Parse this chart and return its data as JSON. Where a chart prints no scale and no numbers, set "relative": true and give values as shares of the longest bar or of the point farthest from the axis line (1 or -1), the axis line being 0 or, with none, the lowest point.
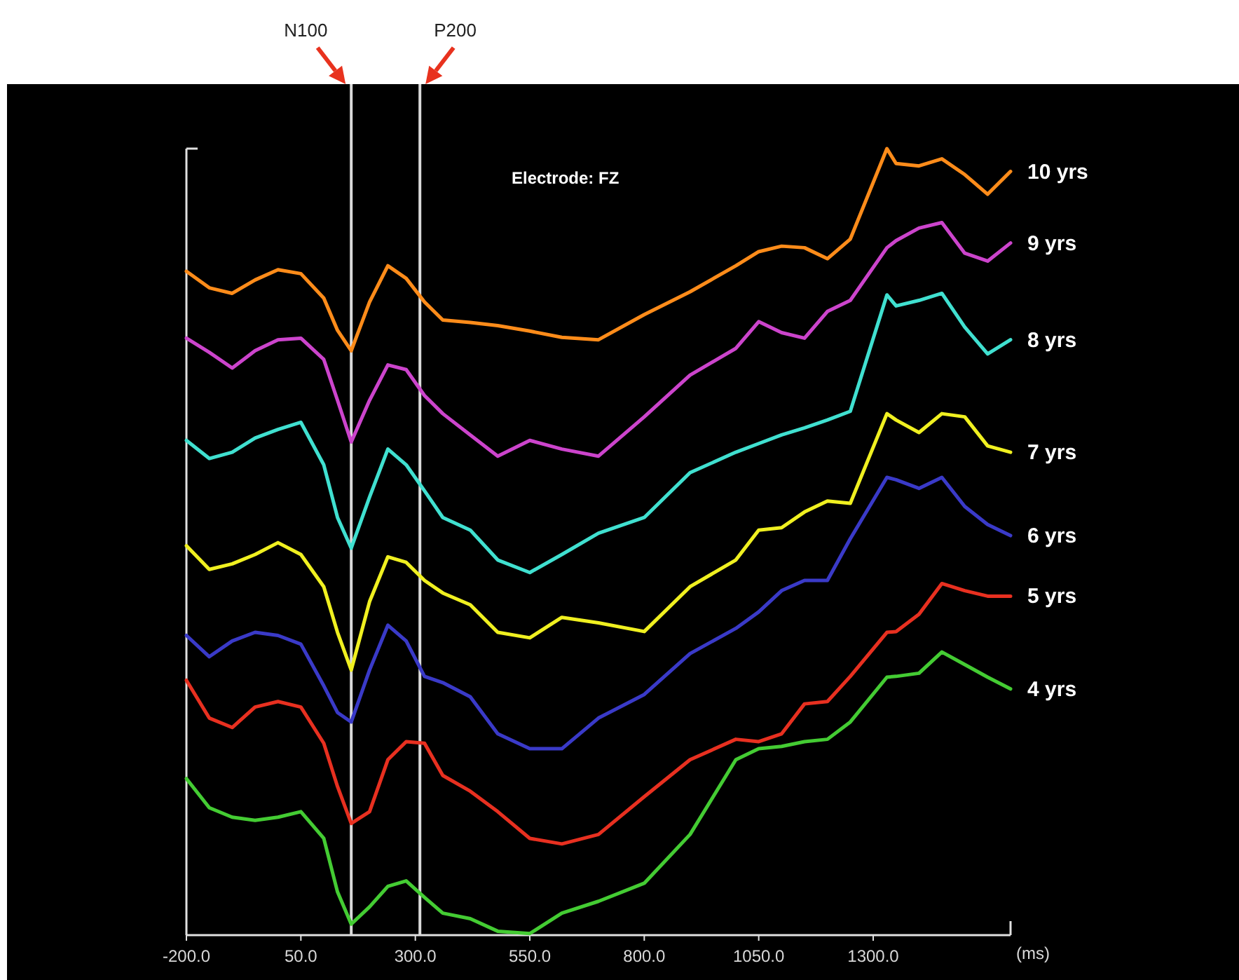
{
  "chart_data": {
    "type": "line",
    "relative": true,
    "xlabel": "(ms)",
    "annotations": [
      "Electrode: FZ"
    ],
    "legend": false,
    "grid": false,
    "marker": "none",
    "line_style": "solid",
    "x": [
      -200,
      -150,
      -100,
      -50,
      0,
      50,
      100,
      130,
      160,
      200,
      240,
      280,
      320,
      360,
      420,
      480,
      550,
      620,
      700,
      800,
      900,
      1000,
      1050,
      1100,
      1150,
      1200,
      1250,
      1330,
      1350,
      1400,
      1450,
      1500,
      1550,
      1600
    ],
    "xlim": [
      -200,
      1600
    ],
    "xticks": [
      {
        "value": -200,
        "label": "-200.0"
      },
      {
        "value": 50,
        "label": "50.0"
      },
      {
        "value": 300,
        "label": "300.0"
      },
      {
        "value": 550,
        "label": "550.0"
      },
      {
        "value": 800,
        "label": "800.0"
      },
      {
        "value": 1050,
        "label": "1050.0"
      },
      {
        "value": 1300,
        "label": "1300.0"
      }
    ],
    "ref_lines": [
      {
        "axis": "x",
        "value": 160,
        "label": "N100",
        "color": "#d9d9d9"
      },
      {
        "axis": "x",
        "value": 310,
        "label": "P200",
        "color": "#d9d9d9"
      }
    ],
    "series": [
      {
        "name": "10 yrs",
        "color": "#ff8c1a",
        "values": [
          0.844,
          0.823,
          0.816,
          0.833,
          0.846,
          0.841,
          0.81,
          0.769,
          0.743,
          0.805,
          0.851,
          0.835,
          0.805,
          0.782,
          0.779,
          0.775,
          0.768,
          0.76,
          0.757,
          0.789,
          0.818,
          0.851,
          0.869,
          0.876,
          0.874,
          0.86,
          0.885,
          1.0,
          0.981,
          0.978,
          0.987,
          0.967,
          0.942,
          0.971
        ]
      },
      {
        "name": "9 yrs",
        "color": "#cc44cc",
        "values": [
          0.759,
          0.741,
          0.721,
          0.743,
          0.757,
          0.759,
          0.732,
          0.68,
          0.627,
          0.68,
          0.725,
          0.719,
          0.686,
          0.663,
          0.636,
          0.609,
          0.629,
          0.618,
          0.609,
          0.659,
          0.712,
          0.746,
          0.78,
          0.766,
          0.759,
          0.793,
          0.807,
          0.874,
          0.883,
          0.899,
          0.906,
          0.867,
          0.857,
          0.88
        ]
      },
      {
        "name": "8 yrs",
        "color": "#40e0d0",
        "values": [
          0.629,
          0.606,
          0.614,
          0.632,
          0.643,
          0.652,
          0.598,
          0.531,
          0.492,
          0.557,
          0.618,
          0.598,
          0.565,
          0.531,
          0.515,
          0.477,
          0.461,
          0.484,
          0.511,
          0.531,
          0.588,
          0.614,
          0.625,
          0.636,
          0.645,
          0.655,
          0.666,
          0.814,
          0.8,
          0.807,
          0.816,
          0.773,
          0.739,
          0.757
        ]
      },
      {
        "name": "7 yrs",
        "color": "#f0f020",
        "values": [
          0.495,
          0.465,
          0.472,
          0.484,
          0.499,
          0.484,
          0.443,
          0.385,
          0.337,
          0.424,
          0.481,
          0.474,
          0.451,
          0.435,
          0.42,
          0.385,
          0.378,
          0.404,
          0.397,
          0.386,
          0.443,
          0.477,
          0.515,
          0.518,
          0.538,
          0.552,
          0.549,
          0.663,
          0.655,
          0.639,
          0.663,
          0.659,
          0.622,
          0.614
        ]
      },
      {
        "name": "6 yrs",
        "color": "#3a3ac8",
        "values": [
          0.381,
          0.354,
          0.374,
          0.385,
          0.381,
          0.37,
          0.317,
          0.283,
          0.271,
          0.337,
          0.394,
          0.374,
          0.329,
          0.321,
          0.303,
          0.256,
          0.237,
          0.237,
          0.276,
          0.306,
          0.358,
          0.39,
          0.411,
          0.438,
          0.451,
          0.451,
          0.504,
          0.582,
          0.579,
          0.568,
          0.582,
          0.545,
          0.522,
          0.508
        ]
      },
      {
        "name": "5 yrs",
        "color": "#e83020",
        "values": [
          0.324,
          0.276,
          0.264,
          0.29,
          0.297,
          0.29,
          0.244,
          0.189,
          0.142,
          0.157,
          0.223,
          0.246,
          0.244,
          0.203,
          0.183,
          0.157,
          0.123,
          0.116,
          0.128,
          0.176,
          0.223,
          0.249,
          0.246,
          0.256,
          0.294,
          0.297,
          0.329,
          0.385,
          0.386,
          0.408,
          0.447,
          0.438,
          0.431,
          0.431
        ]
      },
      {
        "name": "4 yrs",
        "color": "#44cc33",
        "values": [
          0.199,
          0.162,
          0.15,
          0.146,
          0.15,
          0.157,
          0.123,
          0.055,
          0.014,
          0.036,
          0.062,
          0.069,
          0.048,
          0.028,
          0.021,
          0.005,
          0.002,
          0.028,
          0.043,
          0.066,
          0.128,
          0.223,
          0.237,
          0.24,
          0.246,
          0.249,
          0.271,
          0.328,
          0.329,
          0.333,
          0.36,
          0.344,
          0.328,
          0.313
        ]
      }
    ]
  }
}
